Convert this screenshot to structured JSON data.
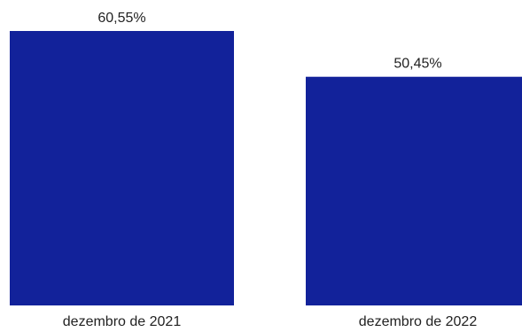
{
  "chart_data": {
    "type": "bar",
    "title": "",
    "xlabel": "",
    "ylabel": "",
    "categories": [
      "dezembro de 2021",
      "dezembro de 2022"
    ],
    "values": [
      60.55,
      50.45
    ],
    "value_labels": [
      "60,55%",
      "50,45%"
    ],
    "unit": "%",
    "ylim": [
      0,
      60.55
    ],
    "grid": false,
    "legend": "none",
    "colors": {
      "bar": "#12229A",
      "text": "#222222",
      "background": "#FFFFFF"
    }
  }
}
